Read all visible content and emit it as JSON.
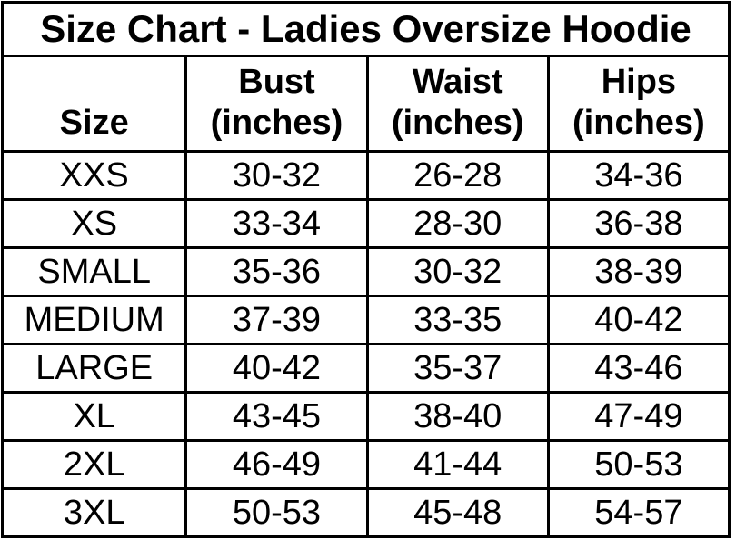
{
  "title": "Size Chart - Ladies Oversize Hoodie",
  "colors": {
    "background": "#ffffff",
    "text": "#000000",
    "border": "#000000"
  },
  "table": {
    "headers": {
      "size": "Size",
      "bust": "Bust\n(inches)",
      "waist": "Waist\n(inches)",
      "hips": "Hips\n(inches)"
    },
    "rows": [
      {
        "size": "XXS",
        "bust": "30-32",
        "waist": "26-28",
        "hips": "34-36"
      },
      {
        "size": "XS",
        "bust": "33-34",
        "waist": "28-30",
        "hips": "36-38"
      },
      {
        "size": "SMALL",
        "bust": "35-36",
        "waist": "30-32",
        "hips": "38-39"
      },
      {
        "size": "MEDIUM",
        "bust": "37-39",
        "waist": "33-35",
        "hips": "40-42"
      },
      {
        "size": "LARGE",
        "bust": "40-42",
        "waist": "35-37",
        "hips": "43-46"
      },
      {
        "size": "XL",
        "bust": "43-45",
        "waist": "38-40",
        "hips": "47-49"
      },
      {
        "size": "2XL",
        "bust": "46-49",
        "waist": "41-44",
        "hips": "50-53"
      },
      {
        "size": "3XL",
        "bust": "50-53",
        "waist": "45-48",
        "hips": "54-57"
      }
    ]
  },
  "chart_data": {
    "type": "table",
    "title": "Size Chart - Ladies Oversize Hoodie",
    "columns": [
      "Size",
      "Bust (inches)",
      "Waist (inches)",
      "Hips (inches)"
    ],
    "rows": [
      [
        "XXS",
        "30-32",
        "26-28",
        "34-36"
      ],
      [
        "XS",
        "33-34",
        "28-30",
        "36-38"
      ],
      [
        "SMALL",
        "35-36",
        "30-32",
        "38-39"
      ],
      [
        "MEDIUM",
        "37-39",
        "33-35",
        "40-42"
      ],
      [
        "LARGE",
        "40-42",
        "35-37",
        "43-46"
      ],
      [
        "XL",
        "43-45",
        "38-40",
        "47-49"
      ],
      [
        "2XL",
        "46-49",
        "41-44",
        "50-53"
      ],
      [
        "3XL",
        "50-53",
        "45-48",
        "54-57"
      ]
    ],
    "layout": {
      "grid": true,
      "title_position": "top-spanning-row",
      "header_style": "bold-bottom-aligned",
      "cell_alignment": "center"
    }
  }
}
